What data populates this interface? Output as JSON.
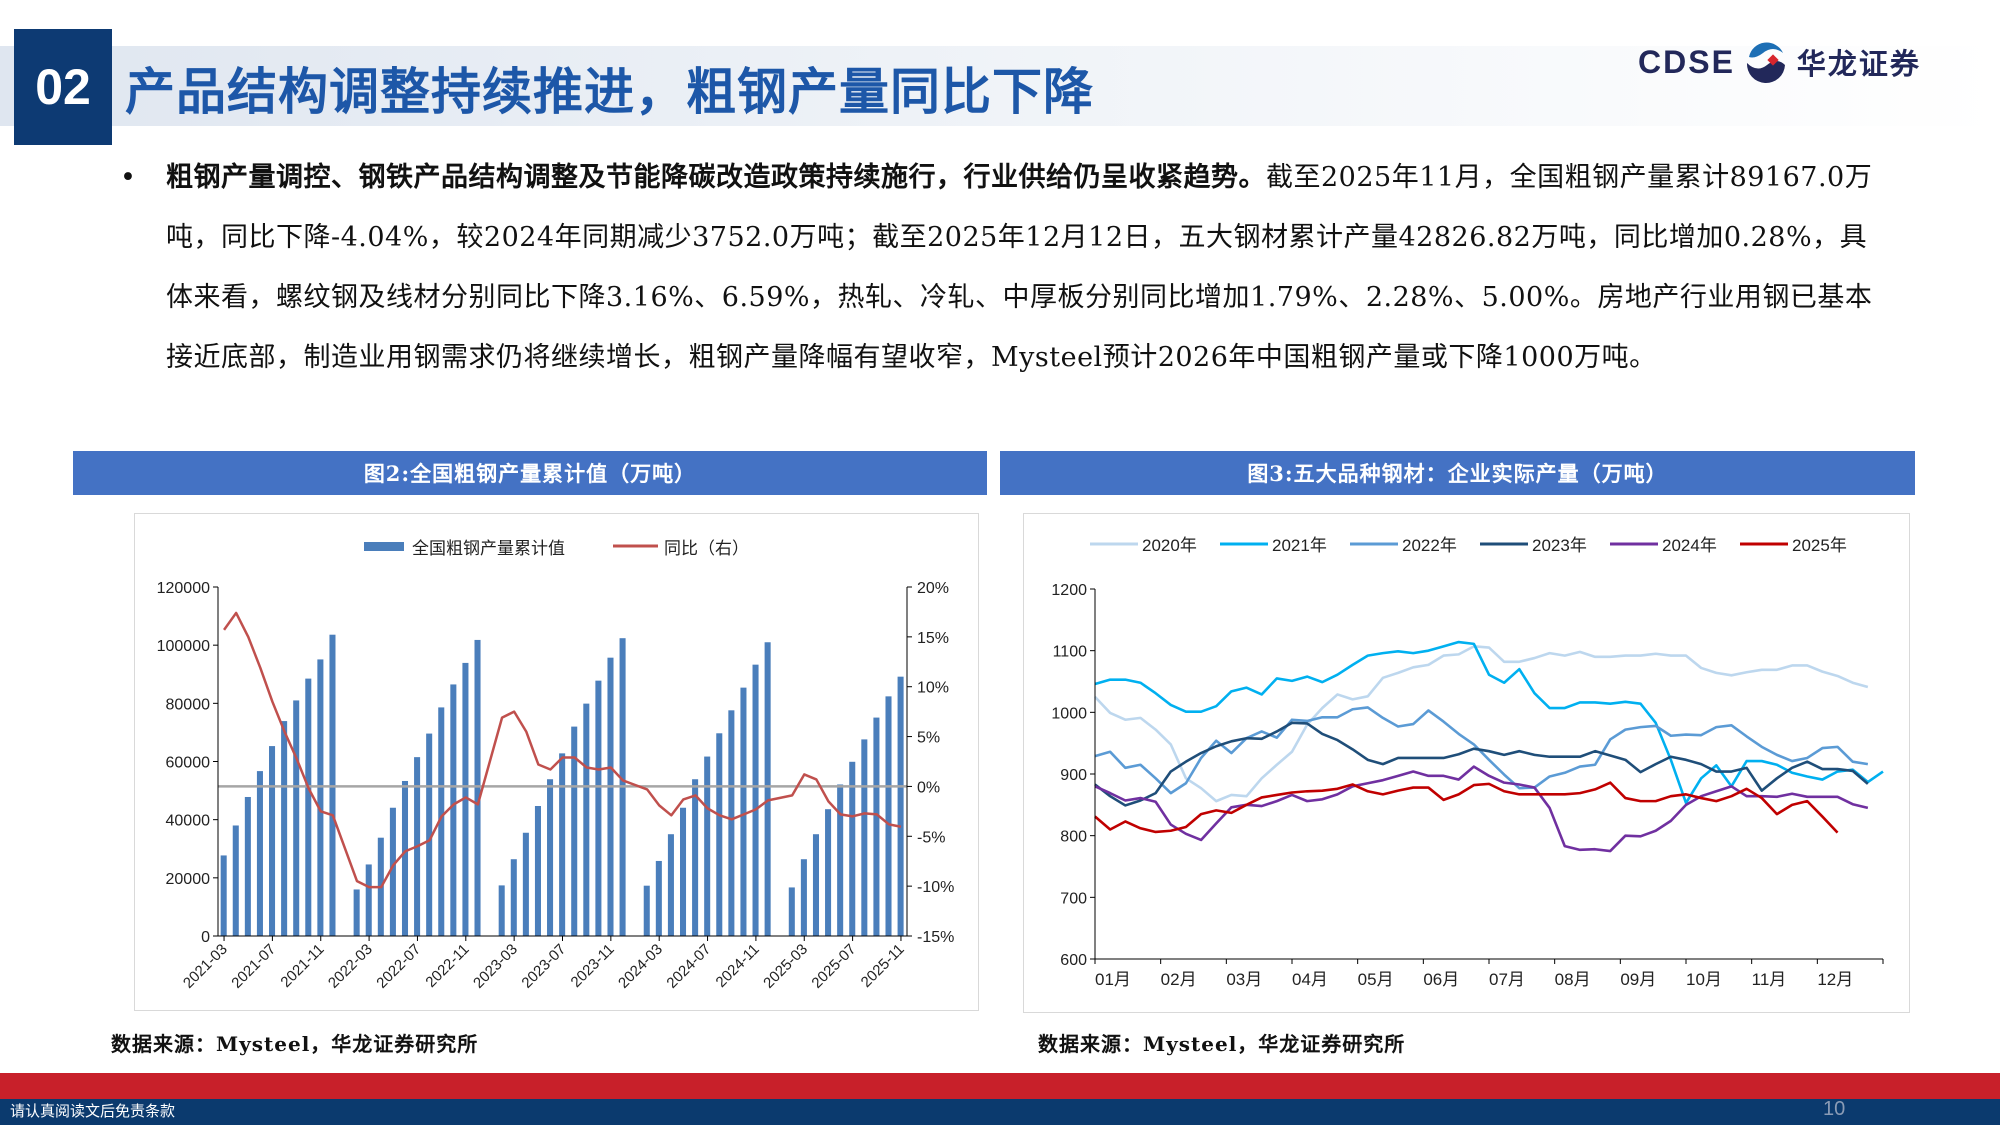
{
  "header": {
    "section_number": "02",
    "title": "产品结构调整持续推进，粗钢产量同比下降",
    "logo_en": "CDSE",
    "logo_cn": "华龙证券"
  },
  "bullet": {
    "marker": "•",
    "bold_text": "粗钢产量调控、钢铁产品结构调整及节能降碳改造政策持续施行，行业供给仍呈收紧趋势。",
    "text": "截至2025年11月，全国粗钢产量累计89167.0万吨，同比下降-4.04%，较2024年同期减少3752.0万吨；截至2025年12月12日，五大钢材累计产量42826.82万吨，同比增加0.28%，具体来看，螺纹钢及线材分别同比下降3.16%、6.59%，热轧、冷轧、中厚板分别同比增加1.79%、2.28%、5.00%。房地产行业用钢已基本接近底部，制造业用钢需求仍将继续增长，粗钢产量降幅有望收窄，Mysteel预计2026年中国粗钢产量或下降1000万吨。"
  },
  "figures": [
    {
      "title": "图2:全国粗钢产量累计值（万吨）",
      "source": "数据来源：Mysteel，华龙证券研究所"
    },
    {
      "title": "图3:五大品种钢材：企业实际产量（万吨）",
      "source": "数据来源：Mysteel，华龙证券研究所"
    }
  ],
  "chart_data": [
    {
      "type": "bar+line",
      "legend": [
        "全国粗钢产量累计值",
        "同比（右）"
      ],
      "legend_placement": "top",
      "categories": [
        "2021-03",
        "2021-04",
        "2021-05",
        "2021-06",
        "2021-07",
        "2021-08",
        "2021-09",
        "2021-10",
        "2021-11",
        "2021-12",
        "2022-01",
        "2022-02",
        "2022-03",
        "2022-04",
        "2022-05",
        "2022-06",
        "2022-07",
        "2022-08",
        "2022-09",
        "2022-10",
        "2022-11",
        "2022-12",
        "2023-01",
        "2023-02",
        "2023-03",
        "2023-04",
        "2023-05",
        "2023-06",
        "2023-07",
        "2023-08",
        "2023-09",
        "2023-10",
        "2023-11",
        "2023-12",
        "2024-01",
        "2024-02",
        "2024-03",
        "2024-04",
        "2024-05",
        "2024-06",
        "2024-07",
        "2024-08",
        "2024-09",
        "2024-10",
        "2024-11",
        "2024-12",
        "2025-01",
        "2025-02",
        "2025-03",
        "2025-04",
        "2025-05",
        "2025-06",
        "2025-07",
        "2025-08",
        "2025-09",
        "2025-10",
        "2025-11"
      ],
      "tick_labels": [
        "2021-03",
        "2021-07",
        "2021-11",
        "2022-03",
        "2022-07",
        "2022-11",
        "2023-03",
        "2023-07",
        "2023-11",
        "2024-03",
        "2024-07",
        "2024-11",
        "2025-03",
        "2025-07",
        "2025-11"
      ],
      "series": [
        {
          "name": "全国粗钢产量累计值",
          "axis": "left",
          "color": "#4a7ebb",
          "values": [
            27700,
            38000,
            47800,
            56700,
            65300,
            73900,
            81000,
            88500,
            95100,
            103600,
            null,
            16000,
            24600,
            33800,
            44100,
            53300,
            61500,
            69600,
            78600,
            86500,
            93900,
            101800,
            null,
            17400,
            26400,
            35500,
            44700,
            53900,
            62800,
            72000,
            79900,
            87800,
            95700,
            102400,
            null,
            17300,
            25800,
            35000,
            44100,
            53900,
            61700,
            69700,
            77600,
            85400,
            93300,
            101000,
            null,
            16700,
            26400,
            35000,
            43600,
            52100,
            59900,
            67600,
            75100,
            82400,
            89167
          ]
        },
        {
          "name": "同比（右）",
          "axis": "right",
          "unit": "%",
          "color": "#c0504d",
          "values": [
            15.7,
            17.4,
            15.0,
            11.9,
            8.5,
            5.5,
            2.8,
            -0.2,
            -2.5,
            -2.9,
            null,
            -9.5,
            -10.1,
            -10.1,
            -7.9,
            -6.5,
            -6.0,
            -5.4,
            -3.0,
            -1.8,
            -1.1,
            -1.8,
            null,
            6.9,
            7.5,
            5.5,
            2.2,
            1.7,
            2.9,
            2.9,
            1.9,
            1.7,
            1.9,
            0.6,
            null,
            -0.3,
            -1.9,
            -2.9,
            -1.3,
            -0.9,
            -2.2,
            -2.9,
            -3.3,
            -2.8,
            -2.3,
            -1.4,
            null,
            -0.9,
            1.2,
            0.7,
            -1.5,
            -2.8,
            -3.0,
            -2.7,
            -2.8,
            -3.8,
            -4.04
          ]
        }
      ],
      "ylim_left": [
        0,
        120000
      ],
      "yticks_left": [
        "0",
        "20000",
        "40000",
        "60000",
        "80000",
        "100000",
        "120000"
      ],
      "ylim_right": [
        -15,
        20
      ],
      "yticks_right": [
        "-15%",
        "-10%",
        "-5%",
        "0%",
        "5%",
        "10%",
        "15%",
        "20%"
      ],
      "reference_line": {
        "value": 0,
        "axis": "right",
        "color": "#a6a6a6"
      },
      "grid": false
    },
    {
      "type": "line",
      "legend_placement": "top",
      "x_tick_labels": [
        "01月",
        "02月",
        "03月",
        "04月",
        "05月",
        "06月",
        "07月",
        "08月",
        "09月",
        "10月",
        "11月",
        "12月"
      ],
      "ylim": [
        600,
        1200
      ],
      "yticks": [
        "600",
        "700",
        "800",
        "900",
        "1000",
        "1100",
        "1200"
      ],
      "grid": false,
      "series": [
        {
          "name": "2020年",
          "color": "#bdd7ee",
          "values": [
            1025,
            999,
            988,
            991,
            972,
            948,
            893,
            877,
            856,
            866,
            864,
            893,
            915,
            936,
            980,
            1007,
            1029,
            1021,
            1026,
            1056,
            1064,
            1073,
            1077,
            1092,
            1094,
            1107,
            1105,
            1082,
            1082,
            1088,
            1096,
            1092,
            1098,
            1090,
            1090,
            1092,
            1092,
            1095,
            1092,
            1092,
            1072,
            1064,
            1060,
            1065,
            1069,
            1069,
            1076,
            1076,
            1066,
            1059,
            1048,
            1041
          ]
        },
        {
          "name": "2021年",
          "color": "#00b0f0",
          "values": [
            1046,
            1053,
            1053,
            1048,
            1031,
            1012,
            1001,
            1001,
            1010,
            1034,
            1040,
            1029,
            1055,
            1051,
            1058,
            1049,
            1061,
            1077,
            1092,
            1096,
            1099,
            1096,
            1100,
            1107,
            1114,
            1111,
            1061,
            1048,
            1070,
            1031,
            1007,
            1007,
            1016,
            1016,
            1014,
            1017,
            1014,
            983,
            923,
            853,
            893,
            914,
            880,
            921,
            921,
            915,
            902,
            896,
            891,
            904,
            907,
            887,
            904
          ]
        },
        {
          "name": "2022年",
          "color": "#5b9bd5",
          "values": [
            929,
            936,
            910,
            915,
            893,
            869,
            885,
            926,
            954,
            934,
            958,
            969,
            959,
            988,
            986,
            992,
            992,
            1005,
            1008,
            991,
            977,
            981,
            1003,
            985,
            965,
            948,
            923,
            899,
            877,
            878,
            896,
            902,
            912,
            915,
            956,
            972,
            976,
            978,
            962,
            964,
            963,
            976,
            979,
            961,
            944,
            931,
            921,
            926,
            942,
            944,
            920,
            916
          ]
        },
        {
          "name": "2023年",
          "color": "#1f4e79",
          "values": [
            883,
            864,
            849,
            857,
            869,
            904,
            920,
            934,
            945,
            953,
            958,
            957,
            969,
            983,
            982,
            965,
            955,
            940,
            923,
            916,
            926,
            926,
            926,
            926,
            932,
            941,
            937,
            931,
            937,
            931,
            928,
            928,
            928,
            937,
            930,
            923,
            903,
            916,
            928,
            923,
            916,
            904,
            904,
            910,
            873,
            893,
            910,
            920,
            908,
            908,
            905,
            884
          ]
        },
        {
          "name": "2024年",
          "color": "#7030a0",
          "values": [
            880,
            869,
            857,
            861,
            855,
            818,
            803,
            793,
            820,
            846,
            850,
            848,
            856,
            866,
            856,
            859,
            867,
            880,
            885,
            890,
            897,
            904,
            897,
            897,
            891,
            912,
            897,
            886,
            883,
            878,
            845,
            783,
            777,
            778,
            775,
            800,
            799,
            808,
            824,
            850,
            864,
            872,
            880,
            864,
            864,
            863,
            868,
            863,
            863,
            863,
            851,
            845
          ]
        },
        {
          "name": "2025年",
          "color": "#c00000",
          "values": [
            831,
            810,
            823,
            812,
            806,
            808,
            814,
            835,
            841,
            837,
            850,
            862,
            866,
            870,
            872,
            873,
            876,
            883,
            872,
            867,
            873,
            878,
            878,
            858,
            867,
            882,
            884,
            872,
            867,
            867,
            867,
            867,
            869,
            875,
            886,
            861,
            856,
            856,
            864,
            867,
            861,
            856,
            864,
            876,
            861,
            835,
            850,
            856,
            831,
            805
          ]
        }
      ]
    }
  ],
  "footer": {
    "disclaimer": "请认真阅读文后免责条款",
    "page_number": "10"
  }
}
